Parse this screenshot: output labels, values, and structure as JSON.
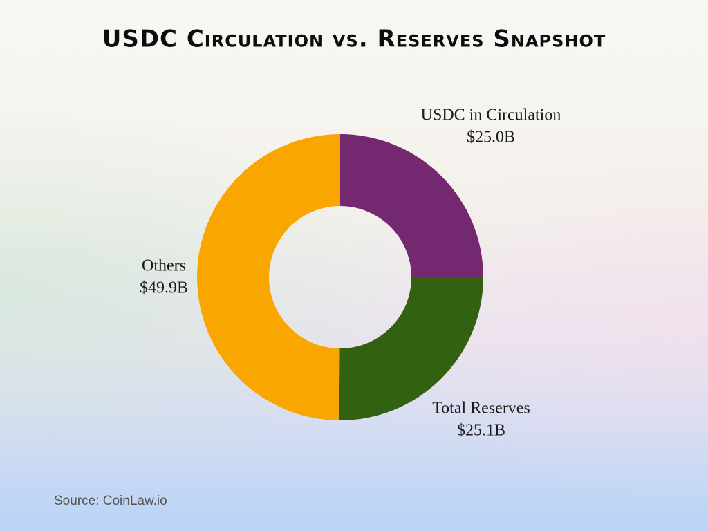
{
  "chart_data": {
    "type": "donut",
    "title": "USDC Circulation vs. Reserves Snapshot",
    "categories": [
      "USDC in Circulation",
      "Total Reserves",
      "Others"
    ],
    "values": [
      25.0,
      25.1,
      49.9
    ],
    "value_labels": [
      "$25.0B",
      "$25.1B",
      "$49.9B"
    ],
    "colors": [
      "#73286f",
      "#336112",
      "#f9a600"
    ],
    "source": "Source: CoinLaw.io"
  }
}
